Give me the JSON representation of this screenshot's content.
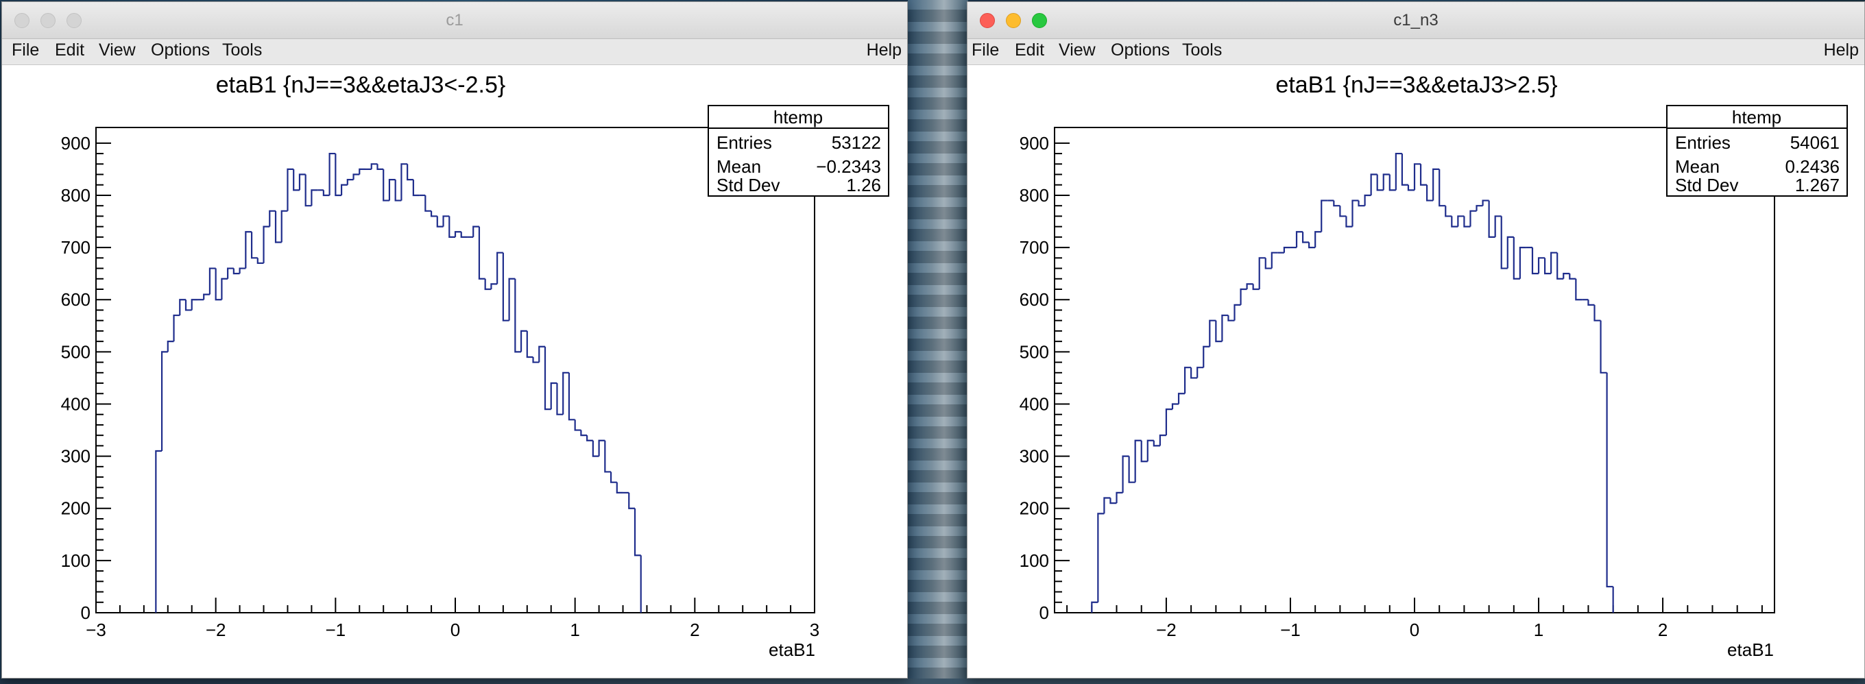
{
  "windows": [
    {
      "title": "c1",
      "active": false,
      "menu": [
        "File",
        "Edit",
        "View",
        "Options",
        "Tools"
      ],
      "help": "Help",
      "plot": {
        "title": "etaB1 {nJ==3&&etaJ3<-2.5}",
        "xlabel": "etaB1",
        "stats": {
          "name": "htemp",
          "rows": [
            {
              "label": "Entries",
              "value": "53122"
            },
            {
              "label": "Mean",
              "value": "−0.2343"
            },
            {
              "label": "Std Dev",
              "value": "1.26"
            }
          ]
        }
      }
    },
    {
      "title": "c1_n3",
      "active": true,
      "menu": [
        "File",
        "Edit",
        "View",
        "Options",
        "Tools"
      ],
      "help": "Help",
      "plot": {
        "title": "etaB1 {nJ==3&&etaJ3>2.5}",
        "xlabel": "etaB1",
        "stats": {
          "name": "htemp",
          "rows": [
            {
              "label": "Entries",
              "value": "54061"
            },
            {
              "label": "Mean",
              "value": "0.2436"
            },
            {
              "label": "Std Dev",
              "value": "1.267"
            }
          ]
        }
      }
    }
  ],
  "chart_data": [
    {
      "type": "histogram",
      "title": "etaB1 {nJ==3&&etaJ3<-2.5}",
      "xlabel": "etaB1",
      "ylabel": "",
      "xlim": [
        -3,
        3
      ],
      "ylim": [
        0,
        930
      ],
      "xticks": [
        -3,
        -2,
        -1,
        0,
        1,
        2,
        3
      ],
      "xtick_labels": [
        "−3",
        "−2",
        "−1",
        "0",
        "1",
        "2",
        "3"
      ],
      "yticks": [
        0,
        100,
        200,
        300,
        400,
        500,
        600,
        700,
        800,
        900
      ],
      "bin_edges_start": -2.5,
      "bin_width": 0.05,
      "line_color": "#1f2d8c",
      "values": [
        310,
        500,
        520,
        570,
        600,
        580,
        600,
        600,
        610,
        660,
        600,
        640,
        660,
        650,
        660,
        730,
        680,
        670,
        740,
        770,
        710,
        770,
        850,
        810,
        840,
        780,
        810,
        810,
        800,
        880,
        800,
        820,
        830,
        840,
        850,
        850,
        860,
        850,
        790,
        830,
        790,
        860,
        830,
        800,
        800,
        770,
        760,
        740,
        760,
        720,
        730,
        720,
        720,
        740,
        640,
        620,
        630,
        690,
        560,
        640,
        500,
        540,
        490,
        480,
        510,
        390,
        440,
        380,
        460,
        370,
        350,
        340,
        330,
        300,
        330,
        270,
        250,
        230,
        230,
        200,
        110
      ]
    },
    {
      "type": "histogram",
      "title": "etaB1 {nJ==3&&etaJ3>2.5}",
      "xlabel": "etaB1",
      "ylabel": "",
      "xlim": [
        -2.9,
        2.9
      ],
      "ylim": [
        0,
        930
      ],
      "xticks": [
        -2,
        -1,
        0,
        1,
        2
      ],
      "xtick_labels": [
        "−2",
        "−1",
        "0",
        "1",
        "2"
      ],
      "yticks": [
        0,
        100,
        200,
        300,
        400,
        500,
        600,
        700,
        800,
        900
      ],
      "bin_edges_start": -2.6,
      "bin_width": 0.05,
      "line_color": "#1f2d8c",
      "values": [
        20,
        190,
        220,
        210,
        230,
        300,
        250,
        330,
        290,
        330,
        320,
        340,
        390,
        400,
        420,
        470,
        450,
        470,
        510,
        560,
        520,
        570,
        560,
        590,
        620,
        630,
        620,
        680,
        660,
        690,
        690,
        700,
        700,
        730,
        710,
        700,
        730,
        790,
        790,
        780,
        760,
        740,
        790,
        780,
        800,
        840,
        810,
        840,
        810,
        880,
        820,
        810,
        860,
        820,
        790,
        850,
        780,
        760,
        740,
        760,
        740,
        770,
        780,
        790,
        720,
        760,
        660,
        720,
        640,
        700,
        700,
        650,
        680,
        650,
        690,
        640,
        650,
        640,
        600,
        600,
        590,
        560,
        460,
        50
      ]
    }
  ]
}
